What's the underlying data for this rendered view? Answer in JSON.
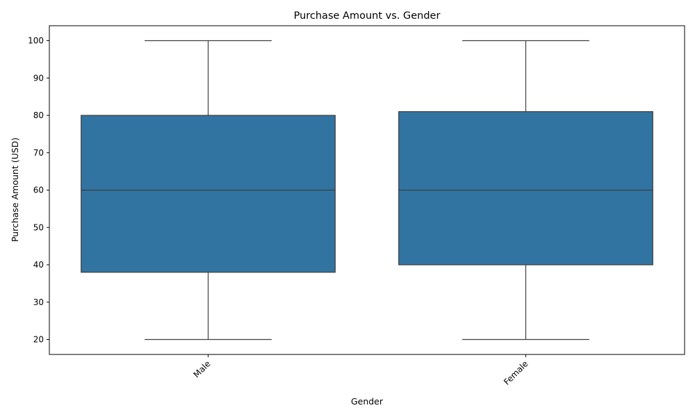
{
  "chart_data": {
    "type": "box",
    "title": "Purchase Amount vs. Gender",
    "xlabel": "Gender",
    "ylabel": "Purchase Amount (USD)",
    "categories": [
      "Male",
      "Female"
    ],
    "boxes": [
      {
        "category": "Male",
        "min": 20,
        "q1": 38,
        "median": 60,
        "q3": 80,
        "max": 100
      },
      {
        "category": "Female",
        "min": 20,
        "q1": 40,
        "median": 60,
        "q3": 81,
        "max": 100
      }
    ],
    "ylim": [
      16,
      104
    ],
    "yticks": [
      20,
      30,
      40,
      50,
      60,
      70,
      80,
      90,
      100
    ],
    "grid": false,
    "legend": "none",
    "colors": {
      "box_fill": "#3274a1",
      "line": "#3d3d3d",
      "axis": "#000000"
    }
  }
}
